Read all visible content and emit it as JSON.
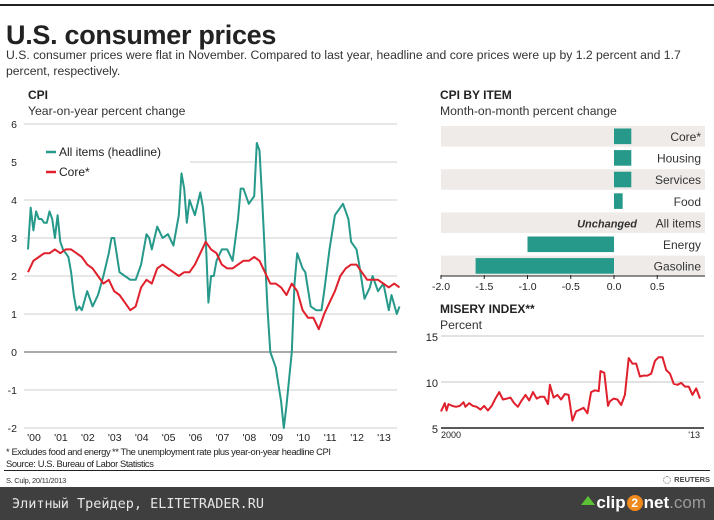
{
  "header": {
    "title": "U.S. consumer prices",
    "subtitle": "U.S. consumer prices were flat in November. Compared to last year, headline and core prices were up by 1.2 percent and 1.7 percent, respectively."
  },
  "colors": {
    "headline": "#26998a",
    "core": "#e0202c",
    "bar": "#26998a",
    "stripe": "#efebe9",
    "misery": "#e0202c"
  },
  "chart_data": [
    {
      "type": "line",
      "title": "CPI",
      "subtitle": "Year-on-year percent change",
      "xlabel": "",
      "ylabel": "",
      "ylim": [
        -2,
        6
      ],
      "xlim": [
        2000,
        2013.9
      ],
      "yticks": [
        "6",
        "5",
        "4",
        "3",
        "2",
        "1",
        "0",
        "-1",
        "-2"
      ],
      "xticks": [
        "'00",
        "'01",
        "'02",
        "'03",
        "'04",
        "'05",
        "'06",
        "'07",
        "'08",
        "'09",
        "'10",
        "'11",
        "'12",
        "'13"
      ],
      "legend": [
        "All items (headline)",
        "Core*"
      ],
      "legend_position": "top-left",
      "grid": true,
      "series": [
        {
          "name": "All items (headline)",
          "x": [
            2000.0,
            2000.1,
            2000.2,
            2000.3,
            2000.4,
            2000.5,
            2000.6,
            2000.7,
            2000.8,
            2000.9,
            2001.0,
            2001.1,
            2001.2,
            2001.3,
            2001.4,
            2001.5,
            2001.6,
            2001.7,
            2001.8,
            2001.9,
            2002.0,
            2002.2,
            2002.4,
            2002.6,
            2002.8,
            2003.0,
            2003.1,
            2003.2,
            2003.4,
            2003.6,
            2003.8,
            2004.0,
            2004.2,
            2004.4,
            2004.5,
            2004.6,
            2004.8,
            2005.0,
            2005.2,
            2005.4,
            2005.6,
            2005.7,
            2005.8,
            2005.9,
            2006.0,
            2006.2,
            2006.4,
            2006.5,
            2006.6,
            2006.7,
            2006.8,
            2006.9,
            2007.0,
            2007.2,
            2007.4,
            2007.6,
            2007.8,
            2007.9,
            2008.0,
            2008.2,
            2008.4,
            2008.5,
            2008.6,
            2008.7,
            2008.9,
            2009.0,
            2009.2,
            2009.4,
            2009.5,
            2009.6,
            2009.8,
            2009.9,
            2010.0,
            2010.2,
            2010.3,
            2010.5,
            2010.7,
            2010.9,
            2011.0,
            2011.2,
            2011.4,
            2011.6,
            2011.7,
            2011.9,
            2012.0,
            2012.2,
            2012.3,
            2012.5,
            2012.7,
            2012.8,
            2013.0,
            2013.2,
            2013.4,
            2013.5,
            2013.7,
            2013.8
          ],
          "y": [
            2.7,
            3.8,
            3.2,
            3.7,
            3.5,
            3.5,
            3.4,
            3.4,
            3.7,
            3.5,
            3.0,
            3.6,
            2.9,
            2.7,
            2.6,
            2.5,
            2.1,
            1.5,
            1.1,
            1.2,
            1.1,
            1.6,
            1.2,
            1.5,
            2.0,
            2.6,
            3.0,
            3.0,
            2.1,
            2.0,
            1.9,
            1.9,
            2.3,
            3.1,
            3.0,
            2.7,
            3.3,
            3.0,
            3.1,
            2.8,
            3.6,
            4.7,
            4.3,
            3.4,
            4.0,
            3.6,
            4.2,
            3.8,
            3.0,
            1.3,
            2.0,
            2.0,
            2.4,
            2.7,
            2.7,
            2.4,
            3.5,
            4.3,
            4.3,
            3.9,
            4.1,
            5.5,
            5.3,
            4.0,
            1.1,
            0.0,
            -0.4,
            -1.3,
            -2.0,
            -1.4,
            0.0,
            1.8,
            2.6,
            2.2,
            2.1,
            1.2,
            1.1,
            1.1,
            1.6,
            2.7,
            3.6,
            3.8,
            3.9,
            3.5,
            2.9,
            2.7,
            2.3,
            1.4,
            1.7,
            2.0,
            1.6,
            1.8,
            1.1,
            1.5,
            1.0,
            1.2
          ]
        },
        {
          "name": "Core*",
          "x": [
            2000.0,
            2000.2,
            2000.4,
            2000.6,
            2000.8,
            2001.0,
            2001.2,
            2001.4,
            2001.6,
            2001.8,
            2002.0,
            2002.2,
            2002.4,
            2002.6,
            2002.8,
            2003.0,
            2003.2,
            2003.4,
            2003.6,
            2003.8,
            2004.0,
            2004.2,
            2004.4,
            2004.6,
            2004.8,
            2005.0,
            2005.2,
            2005.4,
            2005.6,
            2005.8,
            2006.0,
            2006.2,
            2006.4,
            2006.6,
            2006.8,
            2007.0,
            2007.2,
            2007.4,
            2007.6,
            2007.8,
            2008.0,
            2008.2,
            2008.4,
            2008.6,
            2008.8,
            2009.0,
            2009.2,
            2009.4,
            2009.6,
            2009.8,
            2010.0,
            2010.2,
            2010.4,
            2010.6,
            2010.8,
            2011.0,
            2011.2,
            2011.4,
            2011.6,
            2011.8,
            2012.0,
            2012.2,
            2012.4,
            2012.6,
            2012.8,
            2013.0,
            2013.2,
            2013.4,
            2013.6,
            2013.8
          ],
          "y": [
            2.1,
            2.4,
            2.5,
            2.6,
            2.6,
            2.7,
            2.6,
            2.7,
            2.7,
            2.6,
            2.5,
            2.3,
            2.2,
            2.0,
            1.8,
            1.9,
            1.6,
            1.5,
            1.3,
            1.1,
            1.2,
            1.7,
            1.9,
            1.8,
            2.2,
            2.3,
            2.2,
            2.1,
            2.0,
            2.1,
            2.1,
            2.3,
            2.6,
            2.9,
            2.7,
            2.6,
            2.3,
            2.2,
            2.2,
            2.3,
            2.4,
            2.4,
            2.5,
            2.4,
            2.1,
            1.8,
            1.8,
            1.7,
            1.5,
            1.8,
            1.6,
            1.1,
            0.9,
            0.9,
            0.6,
            1.0,
            1.3,
            1.6,
            2.0,
            2.2,
            2.3,
            2.3,
            2.1,
            1.9,
            1.9,
            1.9,
            1.8,
            1.7,
            1.8,
            1.7
          ]
        }
      ]
    },
    {
      "type": "bar",
      "orientation": "horizontal",
      "title": "CPI BY ITEM",
      "subtitle": "Month-on-month percent change",
      "categories": [
        "Core*",
        "Housing",
        "Services",
        "Food",
        "All items",
        "Energy",
        "Gasoline"
      ],
      "values": [
        0.2,
        0.2,
        0.2,
        0.1,
        0.0,
        -1.0,
        -1.6
      ],
      "annotations": [
        {
          "category": "All items",
          "text": "Unchanged"
        }
      ],
      "xlim": [
        -2.0,
        1.0
      ],
      "xticks": [
        "-2.0",
        "-1.5",
        "-1.0",
        "-0.5",
        "0.0",
        "0.5"
      ]
    },
    {
      "type": "line",
      "title": "MISERY INDEX**",
      "subtitle": "Percent",
      "ylim": [
        5,
        15
      ],
      "xlim": [
        2000,
        2013.9
      ],
      "yticks": [
        "15",
        "10",
        "5"
      ],
      "xticks": [
        "2000",
        "'13"
      ],
      "grid": true,
      "series": [
        {
          "name": "Misery index",
          "x": [
            2000.0,
            2000.2,
            2000.3,
            2000.4,
            2000.6,
            2000.8,
            2001.0,
            2001.2,
            2001.3,
            2001.5,
            2001.7,
            2001.9,
            2002.1,
            2002.3,
            2002.5,
            2002.7,
            2002.9,
            2003.1,
            2003.3,
            2003.5,
            2003.7,
            2003.9,
            2004.1,
            2004.3,
            2004.5,
            2004.7,
            2004.9,
            2005.1,
            2005.3,
            2005.5,
            2005.7,
            2005.8,
            2006.0,
            2006.2,
            2006.4,
            2006.6,
            2006.8,
            2007.0,
            2007.2,
            2007.4,
            2007.6,
            2007.8,
            2008.0,
            2008.2,
            2008.4,
            2008.5,
            2008.7,
            2008.9,
            2009.0,
            2009.2,
            2009.4,
            2009.6,
            2009.8,
            2010.0,
            2010.2,
            2010.4,
            2010.6,
            2010.8,
            2011.0,
            2011.2,
            2011.4,
            2011.6,
            2011.8,
            2012.0,
            2012.2,
            2012.4,
            2012.6,
            2012.8,
            2013.0,
            2013.2,
            2013.4,
            2013.6,
            2013.8
          ],
          "y": [
            6.8,
            7.7,
            6.9,
            7.6,
            7.4,
            7.3,
            7.4,
            7.8,
            7.3,
            7.7,
            7.4,
            7.3,
            7.0,
            7.4,
            6.9,
            7.4,
            8.2,
            8.9,
            8.1,
            8.2,
            8.3,
            7.7,
            7.3,
            8.0,
            8.6,
            8.0,
            8.9,
            8.2,
            8.4,
            8.4,
            7.6,
            9.7,
            8.3,
            8.6,
            8.1,
            8.7,
            8.6,
            5.8,
            6.8,
            7.0,
            7.2,
            6.6,
            8.9,
            9.1,
            9.0,
            11.2,
            11.0,
            7.4,
            7.9,
            8.2,
            8.1,
            7.5,
            8.6,
            12.6,
            12.0,
            12.0,
            10.6,
            10.7,
            10.7,
            10.9,
            12.3,
            12.7,
            12.7,
            11.3,
            10.9,
            9.8,
            9.7,
            9.9,
            9.5,
            9.5,
            8.6,
            9.3,
            8.2
          ]
        }
      ]
    }
  ],
  "footnotes": {
    "core_note": "* Excludes food and energy",
    "misery_note": "** The unemployment rate plus year-on-year headline CPI",
    "source": "Source: U.S. Bureau of Labor Statistics",
    "credit": "S. Culp, 20/11/2013",
    "brand": "REUTERS"
  },
  "banner": {
    "text": "Элитный Трейдер, ELITETRADER.RU",
    "logo_clip": "clip",
    "logo_two": "2",
    "logo_net": "net",
    "logo_com": ".com"
  }
}
